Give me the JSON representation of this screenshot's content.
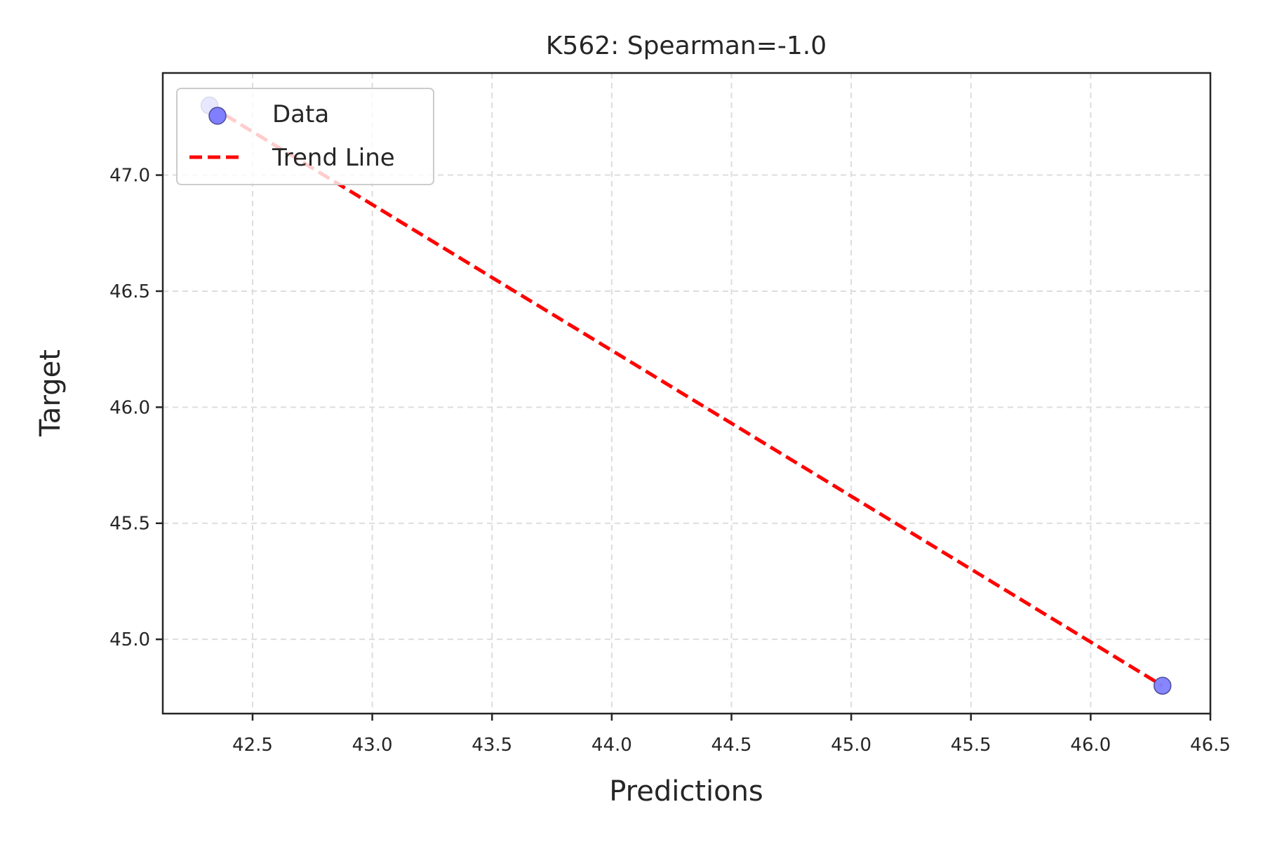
{
  "chart_data": {
    "type": "scatter",
    "title": "K562: Spearman=-1.0",
    "xlabel": "Predictions",
    "ylabel": "Target",
    "xlim": [
      42.125,
      46.5
    ],
    "ylim": [
      44.68,
      47.44
    ],
    "xticks": [
      42.5,
      43.0,
      43.5,
      44.0,
      44.5,
      45.0,
      45.5,
      46.0,
      46.5
    ],
    "xtick_labels": [
      "42.5",
      "43.0",
      "43.5",
      "44.0",
      "44.5",
      "45.0",
      "45.5",
      "46.0",
      "46.5"
    ],
    "yticks": [
      45.0,
      45.5,
      46.0,
      46.5,
      47.0
    ],
    "ytick_labels": [
      "45.0",
      "45.5",
      "46.0",
      "46.5",
      "47.0"
    ],
    "grid": true,
    "legend_position": "top-left",
    "series": [
      {
        "name": "Data",
        "kind": "scatter",
        "color": "#7f7fff",
        "points": [
          {
            "x": 42.32,
            "y": 47.3
          },
          {
            "x": 46.3,
            "y": 44.8
          }
        ]
      },
      {
        "name": "Trend Line",
        "kind": "line",
        "style": "dashed",
        "color": "#ff0000",
        "points": [
          {
            "x": 42.32,
            "y": 47.3
          },
          {
            "x": 46.3,
            "y": 44.8
          }
        ]
      }
    ]
  }
}
